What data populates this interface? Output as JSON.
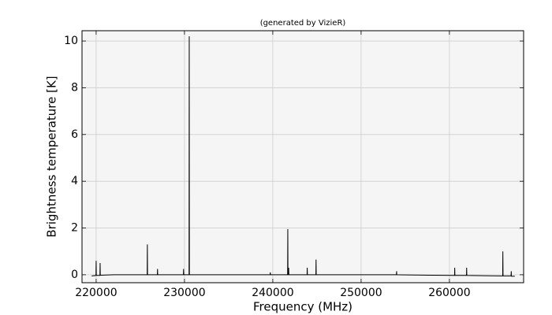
{
  "chart_data": {
    "type": "line",
    "title": "(generated by VizieR)",
    "x_label": "Frequency (MHz)",
    "y_label": "Brightness temperature [K]",
    "x": [
      219500,
      219980,
      220000,
      220020,
      220430,
      220450,
      220470,
      222000,
      225780,
      225800,
      225820,
      226930,
      226950,
      226970,
      229880,
      229900,
      229920,
      230520,
      230540,
      230560,
      235000,
      239700,
      239720,
      239740,
      241680,
      241700,
      241720,
      241780,
      241800,
      241820,
      243880,
      243900,
      243920,
      244880,
      244900,
      244920,
      250000,
      254000,
      254020,
      254040,
      258000,
      260580,
      260600,
      260620,
      261930,
      261950,
      261970,
      264000,
      266030,
      266050,
      266070,
      266980,
      267000,
      267020,
      267400
    ],
    "series": [
      {
        "color": "#000000",
        "values": [
          -0.05,
          -0.03,
          0.6,
          -0.03,
          -0.03,
          0.5,
          -0.02,
          0.0,
          0.0,
          1.3,
          0.0,
          0.0,
          0.25,
          0.0,
          0.0,
          0.25,
          0.0,
          0.0,
          10.2,
          0.0,
          0.0,
          0.0,
          0.1,
          0.0,
          0.0,
          1.95,
          0.0,
          0.0,
          0.3,
          0.0,
          0.0,
          0.3,
          0.0,
          0.0,
          0.65,
          0.0,
          0.0,
          0.0,
          0.15,
          0.0,
          -0.02,
          -0.03,
          0.3,
          -0.03,
          -0.03,
          0.3,
          -0.03,
          -0.04,
          -0.05,
          1.0,
          -0.05,
          -0.05,
          0.15,
          -0.06,
          -0.06
        ]
      }
    ],
    "xlim": [
      218400,
      268400
    ],
    "xticks": [
      220000,
      230000,
      240000,
      250000,
      260000
    ],
    "ylim": [
      -0.34,
      10.44
    ],
    "yticks": [
      0,
      2,
      4,
      6,
      8,
      10
    ],
    "grid": true
  }
}
